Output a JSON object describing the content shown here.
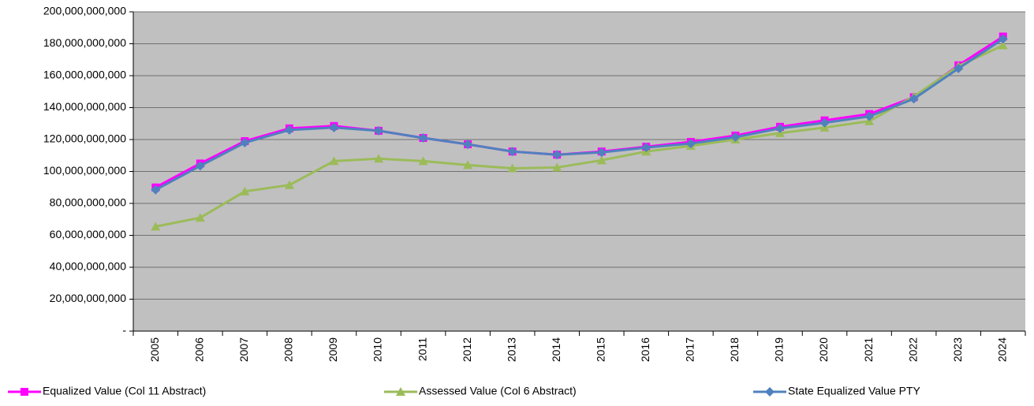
{
  "chart_data": {
    "type": "line",
    "categories": [
      "2005",
      "2006",
      "2007",
      "2008",
      "2009",
      "2010",
      "2011",
      "2012",
      "2013",
      "2014",
      "2015",
      "2016",
      "2017",
      "2018",
      "2019",
      "2020",
      "2021",
      "2022",
      "2023",
      "2024"
    ],
    "series": [
      {
        "name": "Equalized Value (Col 11 Abstract)",
        "color": "#ff00ff",
        "marker": "square",
        "values": [
          90000000000,
          105000000000,
          119000000000,
          127000000000,
          128500000000,
          125500000000,
          121000000000,
          117000000000,
          112500000000,
          110500000000,
          112500000000,
          115500000000,
          118500000000,
          122500000000,
          128000000000,
          132000000000,
          136000000000,
          146500000000,
          166500000000,
          184500000000
        ]
      },
      {
        "name": "Assessed Value (Col 6 Abstract)",
        "color": "#9bbb59",
        "marker": "triangle",
        "values": [
          65500000000,
          71000000000,
          87500000000,
          91500000000,
          106500000000,
          108000000000,
          106500000000,
          104000000000,
          102000000000,
          102500000000,
          107000000000,
          112500000000,
          116000000000,
          120000000000,
          124000000000,
          127500000000,
          131500000000,
          147000000000,
          166000000000,
          179000000000
        ]
      },
      {
        "name": "State Equalized Value PTY",
        "color": "#4f81bd",
        "marker": "diamond",
        "values": [
          88500000000,
          103500000000,
          118000000000,
          126000000000,
          127500000000,
          125500000000,
          121000000000,
          117000000000,
          112500000000,
          110500000000,
          112000000000,
          115000000000,
          117500000000,
          121500000000,
          127000000000,
          130500000000,
          134500000000,
          145500000000,
          164500000000,
          183000000000
        ]
      }
    ],
    "ylim": [
      0,
      200000000000
    ],
    "yticks": [
      {
        "value": 0,
        "label": "-"
      },
      {
        "value": 20000000000,
        "label": "20,000,000,000"
      },
      {
        "value": 40000000000,
        "label": "40,000,000,000"
      },
      {
        "value": 60000000000,
        "label": "60,000,000,000"
      },
      {
        "value": 80000000000,
        "label": "80,000,000,000"
      },
      {
        "value": 100000000000,
        "label": "100,000,000,000"
      },
      {
        "value": 120000000000,
        "label": "120,000,000,000"
      },
      {
        "value": 140000000000,
        "label": "140,000,000,000"
      },
      {
        "value": 160000000000,
        "label": "160,000,000,000"
      },
      {
        "value": 180000000000,
        "label": "180,000,000,000"
      },
      {
        "value": 200000000000,
        "label": "200,000,000,000"
      }
    ],
    "grid": true,
    "legend": "bottom"
  }
}
